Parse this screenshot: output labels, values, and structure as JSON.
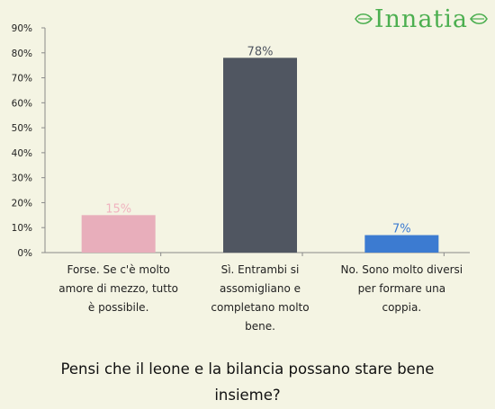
{
  "logo": {
    "text": "Innatia"
  },
  "question": "Pensi che il leone e la bilancia possano stare bene insieme?",
  "chart_data": {
    "type": "bar",
    "categories": [
      "Forse. Se c'è molto amore di mezzo, tutto è possibile.",
      "Sì. Entrambi si assomigliano e completano molto bene.",
      "No. Sono molto diversi per formare una coppia."
    ],
    "values": [
      15,
      78,
      7
    ],
    "value_labels": [
      "15%",
      "78%",
      "7%"
    ],
    "colors": [
      "#e8aebb",
      "#505661",
      "#3c7bd1"
    ],
    "label_colors": [
      "#f0b3bf",
      "#505661",
      "#3c7bd1"
    ],
    "y_ticks": [
      "0%",
      "10%",
      "20%",
      "30%",
      "40%",
      "50%",
      "60%",
      "70%",
      "80%",
      "90%"
    ],
    "ylim": [
      0,
      90
    ],
    "grid": false
  }
}
